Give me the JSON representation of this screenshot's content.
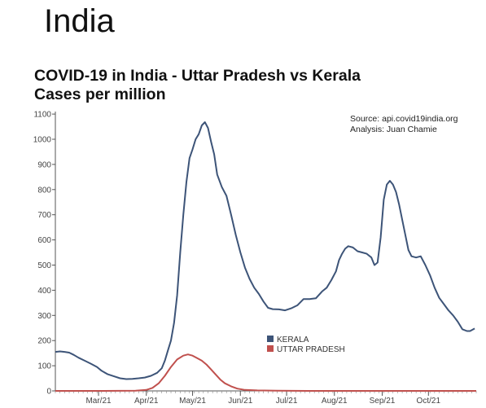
{
  "page": {
    "title": "India",
    "source_line": "Source: api.covid19india.org",
    "analysis_line": "Analysis:  Juan Chamie"
  },
  "chart_data": {
    "type": "line",
    "title": "COVID-19 in India - Uttar Pradesh vs Kerala",
    "subtitle": "Cases per million",
    "xlabel": "",
    "ylabel": "",
    "x_type": "date",
    "xlim": [
      "2021-02-01",
      "2021-11-01"
    ],
    "ylim": [
      0,
      1110
    ],
    "y_ticks": [
      0,
      100,
      200,
      300,
      400,
      500,
      600,
      700,
      800,
      900,
      1000,
      1100
    ],
    "x_ticks": [
      {
        "date": "2021-03-01",
        "label": "Mar/21"
      },
      {
        "date": "2021-04-01",
        "label": "Apr/21"
      },
      {
        "date": "2021-05-01",
        "label": "May/21"
      },
      {
        "date": "2021-06-01",
        "label": "Jun/21"
      },
      {
        "date": "2021-07-01",
        "label": "Jul/21"
      },
      {
        "date": "2021-08-01",
        "label": "Aug/21"
      },
      {
        "date": "2021-09-01",
        "label": "Sep/21"
      },
      {
        "date": "2021-10-01",
        "label": "Oct/21"
      }
    ],
    "legend_position": "center",
    "grid": false,
    "series": [
      {
        "name": "KERALA",
        "color": "#3d5478",
        "points": [
          [
            "2021-02-01",
            155
          ],
          [
            "2021-02-04",
            157
          ],
          [
            "2021-02-07",
            155
          ],
          [
            "2021-02-10",
            152
          ],
          [
            "2021-02-13",
            143
          ],
          [
            "2021-02-16",
            132
          ],
          [
            "2021-02-20",
            120
          ],
          [
            "2021-02-24",
            108
          ],
          [
            "2021-02-28",
            95
          ],
          [
            "2021-03-03",
            80
          ],
          [
            "2021-03-07",
            66
          ],
          [
            "2021-03-11",
            58
          ],
          [
            "2021-03-15",
            50
          ],
          [
            "2021-03-19",
            47
          ],
          [
            "2021-03-23",
            48
          ],
          [
            "2021-03-27",
            50
          ],
          [
            "2021-03-31",
            53
          ],
          [
            "2021-04-04",
            60
          ],
          [
            "2021-04-08",
            72
          ],
          [
            "2021-04-11",
            90
          ],
          [
            "2021-04-13",
            120
          ],
          [
            "2021-04-15",
            160
          ],
          [
            "2021-04-17",
            200
          ],
          [
            "2021-04-19",
            270
          ],
          [
            "2021-04-21",
            380
          ],
          [
            "2021-04-23",
            550
          ],
          [
            "2021-04-25",
            700
          ],
          [
            "2021-04-27",
            830
          ],
          [
            "2021-04-29",
            925
          ],
          [
            "2021-05-01",
            960
          ],
          [
            "2021-05-03",
            1000
          ],
          [
            "2021-05-05",
            1020
          ],
          [
            "2021-05-07",
            1055
          ],
          [
            "2021-05-09",
            1068
          ],
          [
            "2021-05-11",
            1045
          ],
          [
            "2021-05-13",
            990
          ],
          [
            "2021-05-15",
            940
          ],
          [
            "2021-05-17",
            860
          ],
          [
            "2021-05-20",
            810
          ],
          [
            "2021-05-23",
            775
          ],
          [
            "2021-05-26",
            700
          ],
          [
            "2021-05-29",
            620
          ],
          [
            "2021-06-01",
            550
          ],
          [
            "2021-06-04",
            490
          ],
          [
            "2021-06-07",
            445
          ],
          [
            "2021-06-10",
            410
          ],
          [
            "2021-06-13",
            385
          ],
          [
            "2021-06-16",
            355
          ],
          [
            "2021-06-19",
            330
          ],
          [
            "2021-06-22",
            325
          ],
          [
            "2021-06-26",
            324
          ],
          [
            "2021-06-30",
            320
          ],
          [
            "2021-07-04",
            328
          ],
          [
            "2021-07-08",
            340
          ],
          [
            "2021-07-12",
            365
          ],
          [
            "2021-07-16",
            365
          ],
          [
            "2021-07-20",
            368
          ],
          [
            "2021-07-24",
            395
          ],
          [
            "2021-07-27",
            410
          ],
          [
            "2021-07-30",
            440
          ],
          [
            "2021-08-02",
            475
          ],
          [
            "2021-08-04",
            520
          ],
          [
            "2021-08-06",
            545
          ],
          [
            "2021-08-08",
            565
          ],
          [
            "2021-08-10",
            575
          ],
          [
            "2021-08-13",
            570
          ],
          [
            "2021-08-16",
            555
          ],
          [
            "2021-08-19",
            550
          ],
          [
            "2021-08-22",
            545
          ],
          [
            "2021-08-25",
            530
          ],
          [
            "2021-08-27",
            500
          ],
          [
            "2021-08-29",
            510
          ],
          [
            "2021-08-31",
            610
          ],
          [
            "2021-09-02",
            760
          ],
          [
            "2021-09-04",
            820
          ],
          [
            "2021-09-06",
            835
          ],
          [
            "2021-09-08",
            820
          ],
          [
            "2021-09-10",
            790
          ],
          [
            "2021-09-12",
            740
          ],
          [
            "2021-09-14",
            680
          ],
          [
            "2021-09-16",
            620
          ],
          [
            "2021-09-18",
            560
          ],
          [
            "2021-09-20",
            535
          ],
          [
            "2021-09-23",
            530
          ],
          [
            "2021-09-26",
            535
          ],
          [
            "2021-09-29",
            500
          ],
          [
            "2021-10-02",
            460
          ],
          [
            "2021-10-05",
            410
          ],
          [
            "2021-10-08",
            370
          ],
          [
            "2021-10-11",
            345
          ],
          [
            "2021-10-14",
            320
          ],
          [
            "2021-10-17",
            300
          ],
          [
            "2021-10-20",
            275
          ],
          [
            "2021-10-23",
            245
          ],
          [
            "2021-10-26",
            238
          ],
          [
            "2021-10-28",
            238
          ],
          [
            "2021-10-31",
            248
          ]
        ]
      },
      {
        "name": "UTTAR PRADESH",
        "color": "#c0504d",
        "points": [
          [
            "2021-02-01",
            0
          ],
          [
            "2021-03-01",
            0
          ],
          [
            "2021-03-25",
            1
          ],
          [
            "2021-04-01",
            4
          ],
          [
            "2021-04-05",
            12
          ],
          [
            "2021-04-09",
            30
          ],
          [
            "2021-04-13",
            60
          ],
          [
            "2021-04-17",
            95
          ],
          [
            "2021-04-21",
            125
          ],
          [
            "2021-04-25",
            140
          ],
          [
            "2021-04-28",
            145
          ],
          [
            "2021-05-01",
            140
          ],
          [
            "2021-05-04",
            130
          ],
          [
            "2021-05-07",
            120
          ],
          [
            "2021-05-10",
            105
          ],
          [
            "2021-05-13",
            85
          ],
          [
            "2021-05-16",
            65
          ],
          [
            "2021-05-19",
            45
          ],
          [
            "2021-05-22",
            30
          ],
          [
            "2021-05-26",
            18
          ],
          [
            "2021-05-30",
            9
          ],
          [
            "2021-06-04",
            4
          ],
          [
            "2021-06-12",
            2
          ],
          [
            "2021-06-25",
            1
          ],
          [
            "2021-07-15",
            0
          ],
          [
            "2021-11-01",
            0
          ]
        ]
      }
    ]
  }
}
